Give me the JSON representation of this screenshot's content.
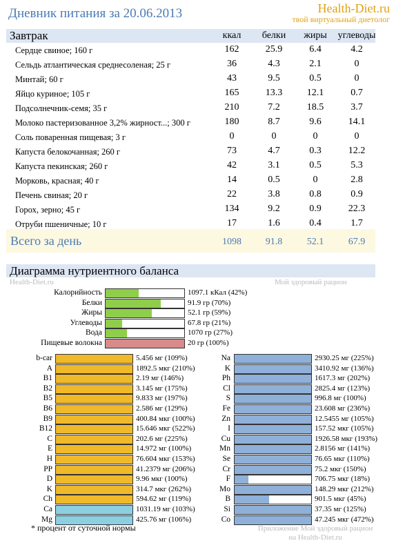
{
  "title": "Дневник питания за 20.06.2013",
  "brand": {
    "name": "Health-Diet.ru",
    "tagline": "твой виртуальный диетолог"
  },
  "meal": {
    "name": "Завтрак",
    "columns": [
      "ккал",
      "белки",
      "жиры",
      "углеводы"
    ],
    "rows": [
      {
        "name": "Сердце свиное; 160 г",
        "kcal": "162",
        "protein": "25.9",
        "fat": "6.4",
        "carbs": "4.2"
      },
      {
        "name": "Сельдь атлантическая среднесоленая; 25 г",
        "kcal": "36",
        "protein": "4.3",
        "fat": "2.1",
        "carbs": "0"
      },
      {
        "name": "Минтай; 60 г",
        "kcal": "43",
        "protein": "9.5",
        "fat": "0.5",
        "carbs": "0"
      },
      {
        "name": "Яйцо куриное; 105 г",
        "kcal": "165",
        "protein": "13.3",
        "fat": "12.1",
        "carbs": "0.7"
      },
      {
        "name": "Подсолнечник-семя; 35 г",
        "kcal": "210",
        "protein": "7.2",
        "fat": "18.5",
        "carbs": "3.7"
      },
      {
        "name": "Молоко пастеризованное 3,2% жирност...; 300 г",
        "kcal": "180",
        "protein": "8.7",
        "fat": "9.6",
        "carbs": "14.1"
      },
      {
        "name": "Соль поваренная пищевая; 3 г",
        "kcal": "0",
        "protein": "0",
        "fat": "0",
        "carbs": "0"
      },
      {
        "name": "Капуста белокочанная; 260 г",
        "kcal": "73",
        "protein": "4.7",
        "fat": "0.3",
        "carbs": "12.2"
      },
      {
        "name": "Капуста пекинская; 260 г",
        "kcal": "42",
        "protein": "3.1",
        "fat": "0.5",
        "carbs": "5.3"
      },
      {
        "name": "Морковь, красная; 40 г",
        "kcal": "14",
        "protein": "0.5",
        "fat": "0",
        "carbs": "2.8"
      },
      {
        "name": "Печень свиная; 20 г",
        "kcal": "22",
        "protein": "3.8",
        "fat": "0.8",
        "carbs": "0.9"
      },
      {
        "name": "Горох, зерно; 45 г",
        "kcal": "134",
        "protein": "9.2",
        "fat": "0.9",
        "carbs": "22.3"
      },
      {
        "name": "Отруби пшеничные; 10 г",
        "kcal": "17",
        "protein": "1.6",
        "fat": "0.4",
        "carbs": "1.7"
      }
    ]
  },
  "total": {
    "label": "Всего за день",
    "kcal": "1098",
    "protein": "91.8",
    "fat": "52.1",
    "carbs": "67.9"
  },
  "diagram": {
    "title": "Диаграмма нутриентного баланса",
    "watermark_left": "Health-Diet.ru",
    "watermark_right": "Мой здоровый рацион",
    "balance": [
      {
        "label": "Калорийность",
        "value": "1097.1 кКал (42%)",
        "fraction": 0.42,
        "color": "#8fce4a"
      },
      {
        "label": "Белки",
        "value": "91.9 гр (70%)",
        "fraction": 0.7,
        "color": "#8fce4a"
      },
      {
        "label": "Жиры",
        "value": "52.1 гр (59%)",
        "fraction": 0.59,
        "color": "#8fce4a"
      },
      {
        "label": "Углеводы",
        "value": "67.8 гр (21%)",
        "fraction": 0.21,
        "color": "#8fce4a"
      },
      {
        "label": "Вода",
        "value": "1070 гр (27%)",
        "fraction": 0.27,
        "color": "#8fce4a"
      },
      {
        "label": "Пищевые волокна",
        "value": "20 гр (100%)",
        "fraction": 1.0,
        "color": "#d98a8a"
      }
    ],
    "vitamins": [
      {
        "label": "b-car",
        "value": "5.456 мг (109%)",
        "fraction": 1.0,
        "color": "#f0b92a"
      },
      {
        "label": "A",
        "value": "1892.5 мкг (210%)",
        "fraction": 1.0,
        "color": "#f0b92a"
      },
      {
        "label": "B1",
        "value": "2.19 мг (146%)",
        "fraction": 1.0,
        "color": "#f0b92a"
      },
      {
        "label": "B2",
        "value": "3.145 мг (175%)",
        "fraction": 1.0,
        "color": "#f0b92a"
      },
      {
        "label": "B5",
        "value": "9.833 мг (197%)",
        "fraction": 1.0,
        "color": "#f0b92a"
      },
      {
        "label": "B6",
        "value": "2.586 мг (129%)",
        "fraction": 1.0,
        "color": "#f0b92a"
      },
      {
        "label": "B9",
        "value": "400.84 мкг (100%)",
        "fraction": 1.0,
        "color": "#f0b92a"
      },
      {
        "label": "B12",
        "value": "15.646 мкг (522%)",
        "fraction": 1.0,
        "color": "#f0b92a"
      },
      {
        "label": "C",
        "value": "202.6 мг (225%)",
        "fraction": 1.0,
        "color": "#f0b92a"
      },
      {
        "label": "E",
        "value": "14.972 мг (100%)",
        "fraction": 1.0,
        "color": "#f0b92a"
      },
      {
        "label": "H",
        "value": "76.604 мкг (153%)",
        "fraction": 1.0,
        "color": "#f0b92a"
      },
      {
        "label": "PP",
        "value": "41.2379 мг (206%)",
        "fraction": 1.0,
        "color": "#f0b92a"
      },
      {
        "label": "D",
        "value": "9.96 мкг (100%)",
        "fraction": 1.0,
        "color": "#f0b92a"
      },
      {
        "label": "K",
        "value": "314.7 мкг (262%)",
        "fraction": 1.0,
        "color": "#f0b92a"
      },
      {
        "label": "Ch",
        "value": "594.62 мг (119%)",
        "fraction": 1.0,
        "color": "#f0b92a"
      },
      {
        "label": "Ca",
        "value": "1031.19 мг (103%)",
        "fraction": 1.0,
        "color": "#8ccfe0"
      },
      {
        "label": "Mg",
        "value": "425.76 мг (106%)",
        "fraction": 1.0,
        "color": "#8ccfe0"
      }
    ],
    "minerals": [
      {
        "label": "Na",
        "value": "2930.25 мг (225%)",
        "fraction": 1.0,
        "color": "#8fb0d8"
      },
      {
        "label": "K",
        "value": "3410.92 мг (136%)",
        "fraction": 1.0,
        "color": "#8fb0d8"
      },
      {
        "label": "Ph",
        "value": "1617.3 мг (202%)",
        "fraction": 1.0,
        "color": "#8fb0d8"
      },
      {
        "label": "Cl",
        "value": "2825.4 мг (123%)",
        "fraction": 1.0,
        "color": "#8fb0d8"
      },
      {
        "label": "S",
        "value": "996.8 мг (100%)",
        "fraction": 1.0,
        "color": "#8fb0d8"
      },
      {
        "label": "Fe",
        "value": "23.608 мг (236%)",
        "fraction": 1.0,
        "color": "#8fb0d8"
      },
      {
        "label": "Zn",
        "value": "12.5455 мг (105%)",
        "fraction": 1.0,
        "color": "#8fb0d8"
      },
      {
        "label": "I",
        "value": "157.52 мкг (105%)",
        "fraction": 1.0,
        "color": "#8fb0d8"
      },
      {
        "label": "Cu",
        "value": "1926.58 мкг (193%)",
        "fraction": 1.0,
        "color": "#8fb0d8"
      },
      {
        "label": "Mn",
        "value": "2.8156 мг (141%)",
        "fraction": 1.0,
        "color": "#8fb0d8"
      },
      {
        "label": "Se",
        "value": "76.65 мкг (110%)",
        "fraction": 1.0,
        "color": "#8fb0d8"
      },
      {
        "label": "Cr",
        "value": "75.2 мкг (150%)",
        "fraction": 1.0,
        "color": "#8fb0d8"
      },
      {
        "label": "F",
        "value": "706.75 мкг (18%)",
        "fraction": 0.18,
        "color": "#8fb0d8"
      },
      {
        "label": "Mo",
        "value": "148.29 мкг (212%)",
        "fraction": 1.0,
        "color": "#8fb0d8"
      },
      {
        "label": "B",
        "value": "901.5 мкг (45%)",
        "fraction": 0.45,
        "color": "#8fb0d8"
      },
      {
        "label": "Si",
        "value": "37.35 мг (125%)",
        "fraction": 1.0,
        "color": "#8fb0d8"
      },
      {
        "label": "Co",
        "value": "47.245 мкг (472%)",
        "fraction": 1.0,
        "color": "#8fb0d8"
      }
    ],
    "footnote": "* процент от суточной нормы",
    "footer_watermark_1": "Приложение Мой здоровый рацион",
    "footer_watermark_2": "на Health-Diet.ru"
  }
}
